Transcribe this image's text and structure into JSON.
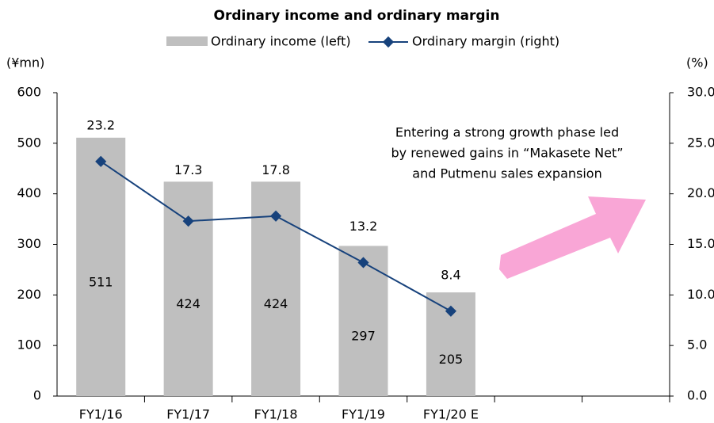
{
  "chart_data": {
    "type": "bar_line",
    "title": "Ordinary income and ordinary margin",
    "y_axis_label": "(¥mn)",
    "y2_axis_label": "(%)",
    "annotation": [
      "Entering a strong growth phase led",
      "by renewed gains in “Makasete Net”",
      "and Putmenu sales expansion"
    ],
    "categories": [
      "FY1/16",
      "FY1/17",
      "FY1/18",
      "FY1/19",
      "FY1/20 E",
      null,
      null
    ],
    "series": [
      {
        "name": "Ordinary income (left)",
        "color": "#bfbfbf",
        "type": "bar",
        "values": [
          511,
          424,
          424,
          297,
          205,
          null,
          null
        ]
      },
      {
        "name": "Ordinary margin (right)",
        "color": "#17427c",
        "type": "line",
        "axis": "y2",
        "values": [
          23.2,
          17.3,
          17.8,
          13.2,
          8.4,
          null,
          null
        ]
      }
    ],
    "ylim": [
      0,
      600
    ],
    "yticks": [
      0,
      100,
      200,
      300,
      400,
      500,
      600
    ],
    "y2lim": [
      0,
      30
    ],
    "y2ticks": [
      {
        "value": 0,
        "label": "0.0"
      },
      {
        "value": 5,
        "label": "5.0"
      },
      {
        "value": 10,
        "label": "10.0"
      },
      {
        "value": 15,
        "label": "15.0"
      },
      {
        "value": 20,
        "label": "20.0"
      },
      {
        "value": 25,
        "label": "25.0"
      },
      {
        "value": 30,
        "label": "30.0"
      }
    ]
  }
}
